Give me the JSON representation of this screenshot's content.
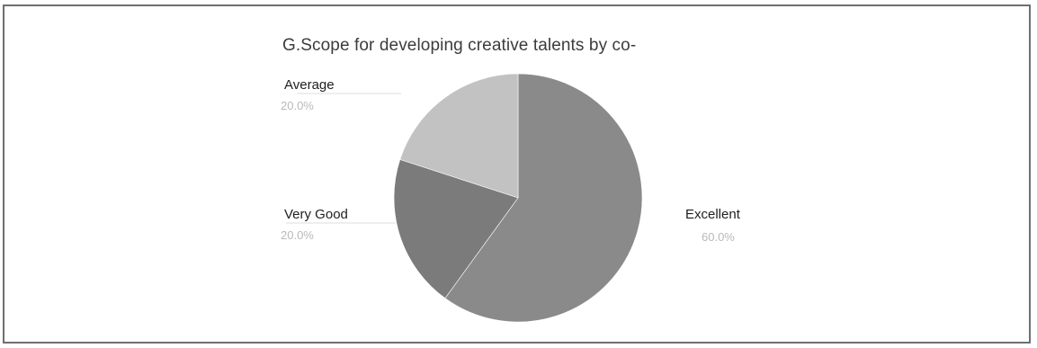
{
  "chart_data": {
    "type": "pie",
    "title": "G.Scope for developing creative talents by co-",
    "slices": [
      {
        "label": "Excellent",
        "value": 60.0,
        "value_label": "60.0%",
        "color": "#8a8a8a"
      },
      {
        "label": "Very Good",
        "value": 20.0,
        "value_label": "20.0%",
        "color": "#7b7b7b"
      },
      {
        "label": "Average",
        "value": 20.0,
        "value_label": "20.0%",
        "color": "#c2c2c2"
      }
    ],
    "legend": "none"
  }
}
